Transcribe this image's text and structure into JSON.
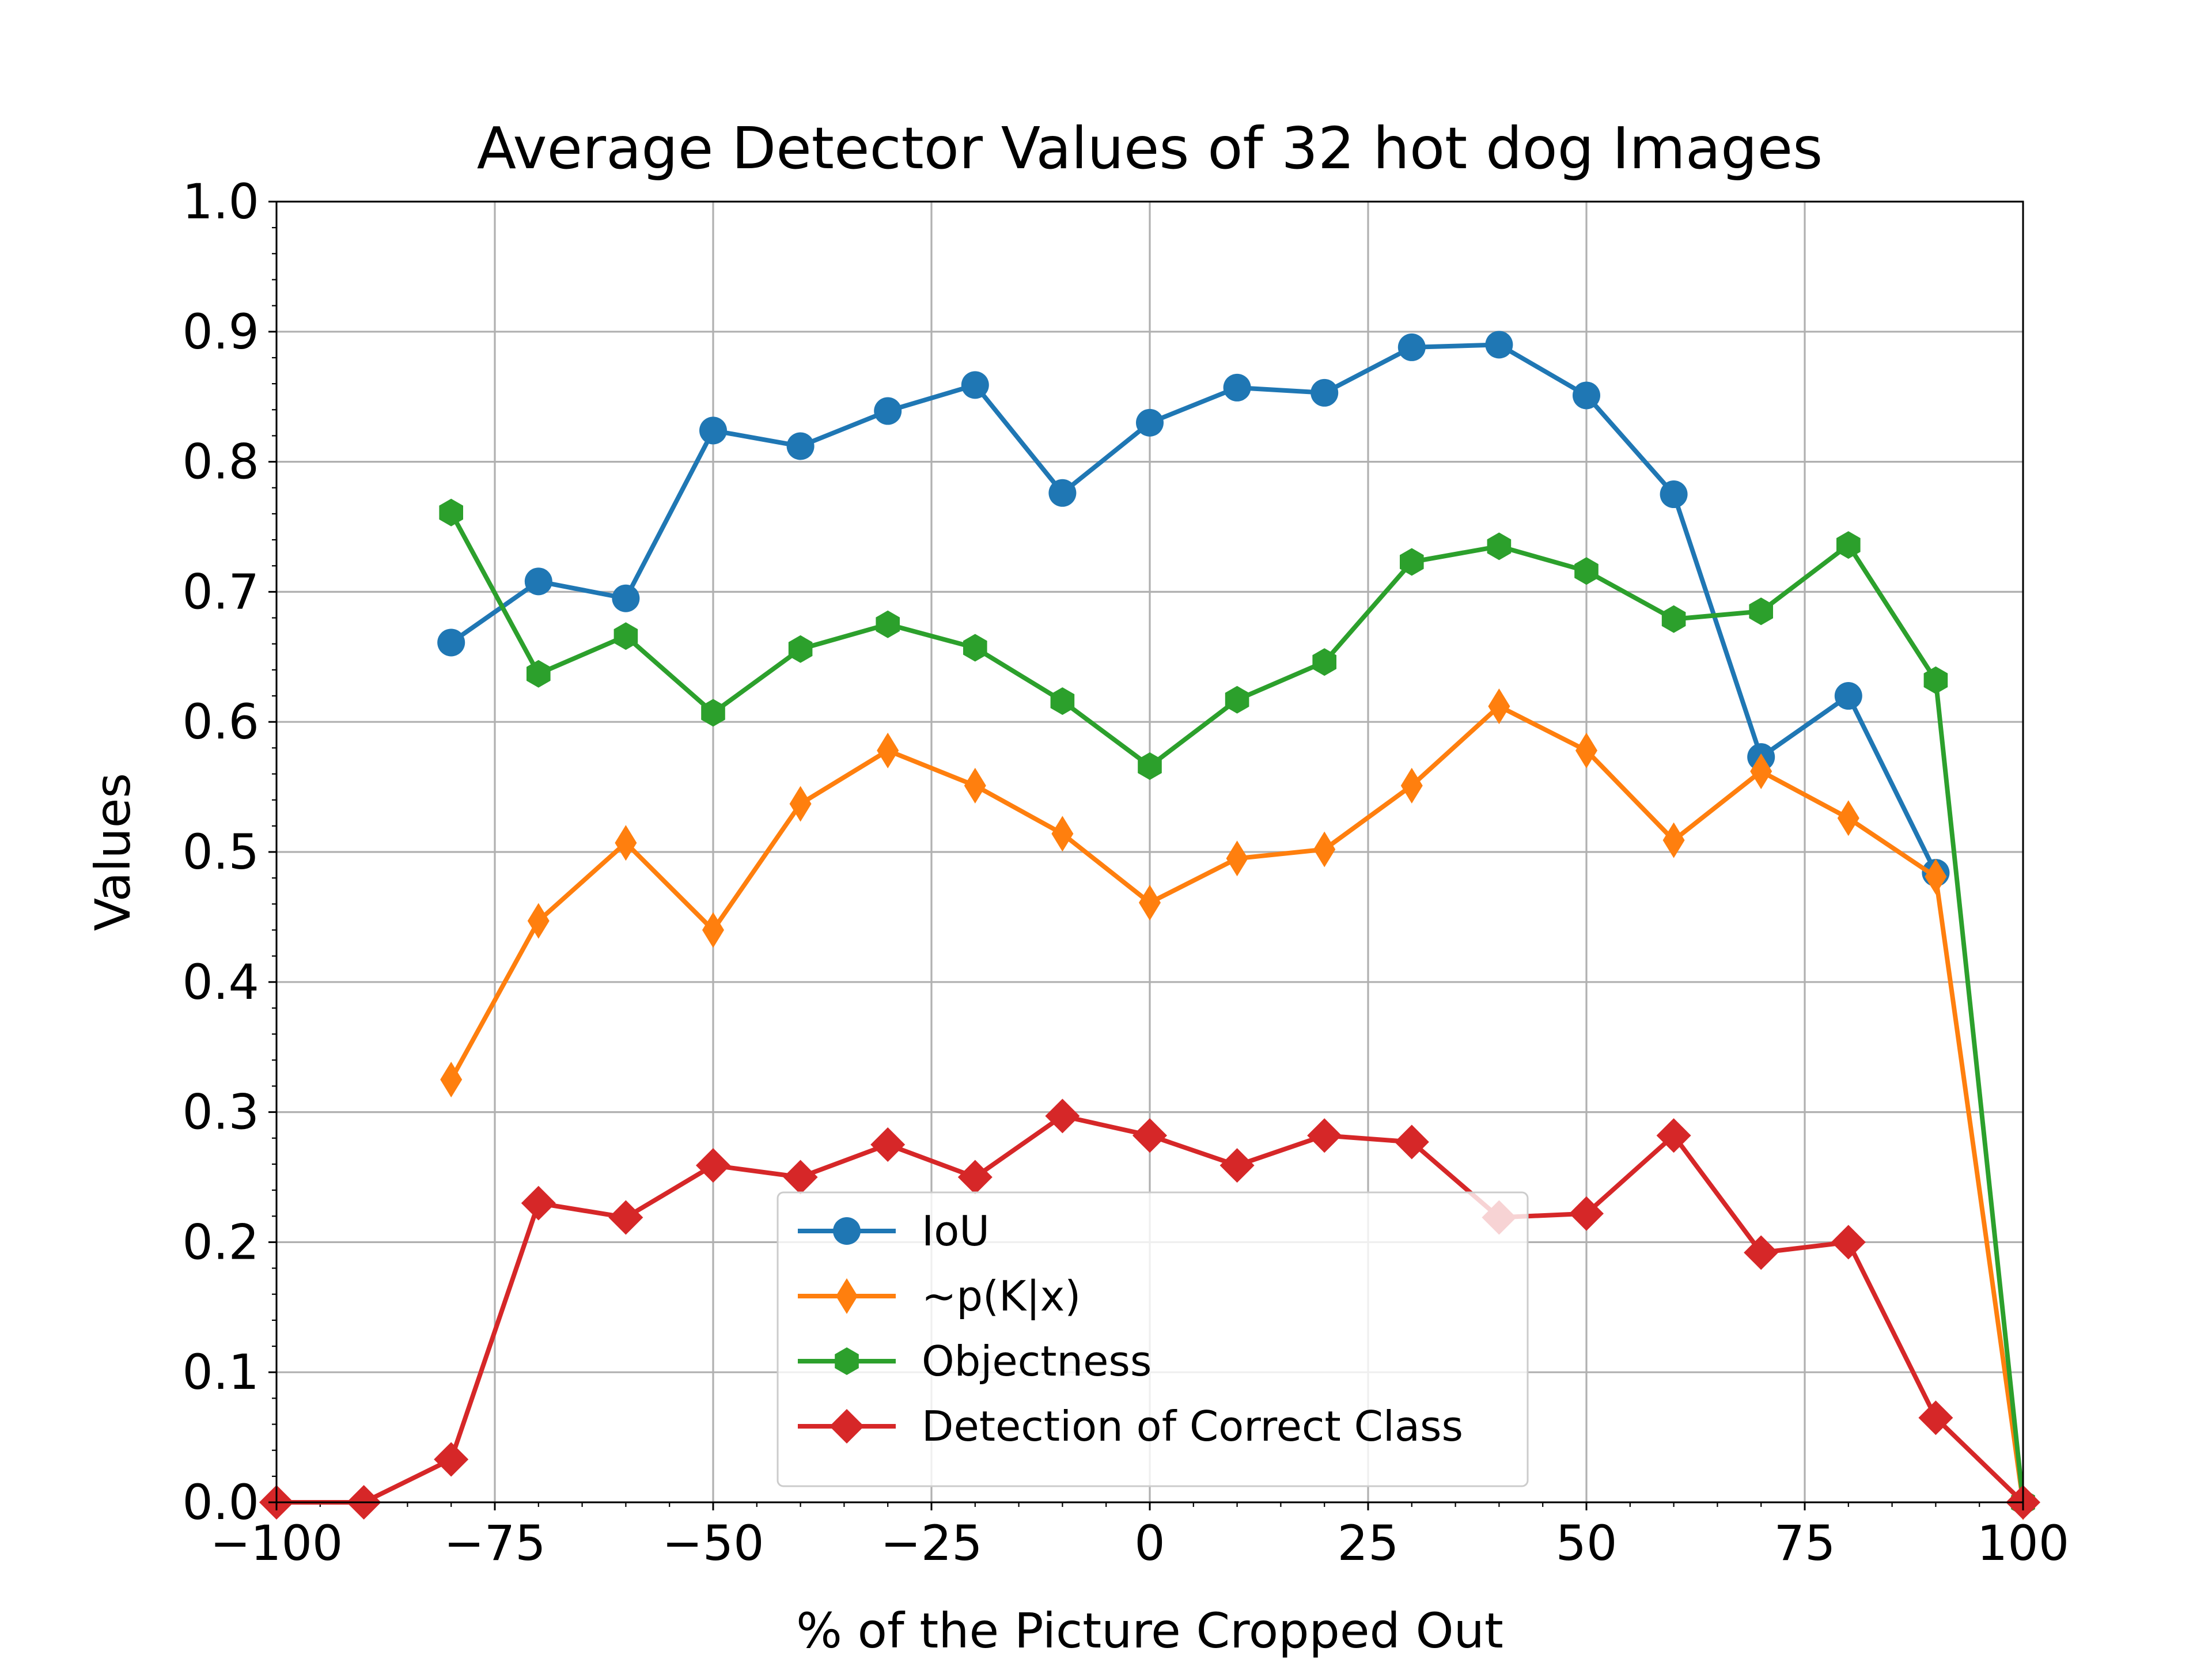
{
  "chart_data": {
    "type": "line",
    "title": "Average Detector Values of 32 hot dog Images",
    "xlabel": "% of the Picture Cropped Out",
    "ylabel": "Values",
    "xlim": [
      -100,
      100
    ],
    "ylim": [
      0.0,
      1.0
    ],
    "xticks": [
      "−100",
      "−75",
      "−50",
      "−25",
      "0",
      "25",
      "50",
      "75",
      "100"
    ],
    "xtick_values": [
      -100,
      -75,
      -50,
      -25,
      0,
      25,
      50,
      75,
      100
    ],
    "yticks": [
      "0.0",
      "0.1",
      "0.2",
      "0.3",
      "0.4",
      "0.5",
      "0.6",
      "0.7",
      "0.8",
      "0.9",
      "1.0"
    ],
    "ytick_values": [
      0.0,
      0.1,
      0.2,
      0.3,
      0.4,
      0.5,
      0.6,
      0.7,
      0.8,
      0.9,
      1.0
    ],
    "grid": true,
    "legend_position": "bottom-center",
    "series": [
      {
        "name": "IoU",
        "color": "#1f77b4",
        "marker": "circle",
        "x": [
          -80,
          -70,
          -60,
          -50,
          -40,
          -30,
          -20,
          -10,
          0,
          10,
          20,
          30,
          40,
          50,
          60,
          70,
          80,
          90
        ],
        "values": [
          0.661,
          0.708,
          0.695,
          0.824,
          0.812,
          0.839,
          0.859,
          0.776,
          0.83,
          0.857,
          0.853,
          0.888,
          0.89,
          0.851,
          0.775,
          0.573,
          0.62,
          0.484
        ]
      },
      {
        "name": "~p(K|x)",
        "color": "#ff7f0e",
        "marker": "thin-diamond",
        "x": [
          -80,
          -70,
          -60,
          -50,
          -40,
          -30,
          -20,
          -10,
          0,
          10,
          20,
          30,
          40,
          50,
          60,
          70,
          80,
          90,
          100
        ],
        "values": [
          0.325,
          0.447,
          0.507,
          0.44,
          0.537,
          0.578,
          0.551,
          0.514,
          0.461,
          0.495,
          0.502,
          0.551,
          0.612,
          0.578,
          0.509,
          0.562,
          0.526,
          0.481,
          0.0
        ]
      },
      {
        "name": "Objectness",
        "color": "#2ca02c",
        "marker": "hexagon",
        "x": [
          -80,
          -70,
          -60,
          -50,
          -40,
          -30,
          -20,
          -10,
          0,
          10,
          20,
          30,
          40,
          50,
          60,
          70,
          80,
          90,
          100
        ],
        "values": [
          0.761,
          0.637,
          0.666,
          0.607,
          0.656,
          0.675,
          0.657,
          0.616,
          0.566,
          0.617,
          0.646,
          0.723,
          0.735,
          0.716,
          0.679,
          0.685,
          0.736,
          0.632,
          0.0
        ]
      },
      {
        "name": "Detection of Correct Class",
        "color": "#d62728",
        "marker": "diamond",
        "x": [
          -100,
          -90,
          -80,
          -70,
          -60,
          -50,
          -40,
          -30,
          -20,
          -10,
          0,
          10,
          20,
          30,
          40,
          50,
          60,
          70,
          80,
          90,
          100
        ],
        "values": [
          0.0,
          0.0,
          0.033,
          0.23,
          0.219,
          0.259,
          0.25,
          0.275,
          0.25,
          0.297,
          0.282,
          0.259,
          0.282,
          0.277,
          0.219,
          0.222,
          0.282,
          0.192,
          0.2,
          0.065,
          0.0
        ]
      }
    ]
  }
}
